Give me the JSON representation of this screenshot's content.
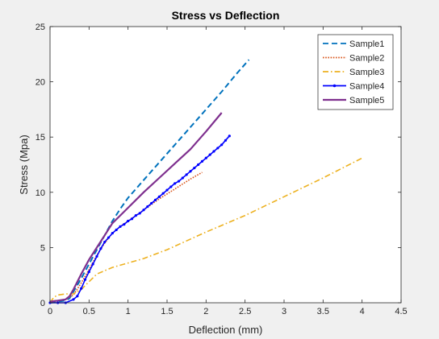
{
  "chart_data": {
    "type": "line",
    "title": "Stress vs Deflection",
    "xlabel": "Deflection (mm)",
    "ylabel": "Stress (Mpa)",
    "xlim": [
      0,
      4.5
    ],
    "ylim": [
      0,
      25
    ],
    "xticks": [
      0,
      0.5,
      1,
      1.5,
      2,
      2.5,
      3,
      3.5,
      4,
      4.5
    ],
    "xtick_labels": [
      "0",
      "0.5",
      "1",
      "1.5",
      "2",
      "2.5",
      "3",
      "3.5",
      "4",
      "4.5"
    ],
    "yticks": [
      0,
      5,
      10,
      15,
      20,
      25
    ],
    "ytick_labels": [
      "0",
      "5",
      "10",
      "15",
      "20",
      "25"
    ],
    "grid": false,
    "legend_position": "top-right",
    "series": [
      {
        "name": "Sample1",
        "color": "#0072bd",
        "style": "dashed",
        "marker": "none",
        "x": [
          0.0,
          0.1,
          0.2,
          0.25,
          0.3,
          0.4,
          0.5,
          0.6,
          0.7,
          0.8,
          0.9,
          1.0,
          1.2,
          1.4,
          1.6,
          1.8,
          2.0,
          2.2,
          2.4,
          2.55
        ],
        "y": [
          0.0,
          0.1,
          0.2,
          0.4,
          1.0,
          2.2,
          3.5,
          4.8,
          6.1,
          7.4,
          8.5,
          9.5,
          11.1,
          12.7,
          14.3,
          15.9,
          17.5,
          19.1,
          20.8,
          22.0
        ]
      },
      {
        "name": "Sample2",
        "color": "#d95319",
        "style": "dotted",
        "marker": "none",
        "x": [
          0.0,
          0.05,
          0.1,
          0.2,
          0.3,
          0.4,
          0.5,
          0.6,
          0.7,
          0.8,
          0.9,
          1.0,
          1.2,
          1.4,
          1.6,
          1.8,
          1.95
        ],
        "y": [
          0.0,
          0.2,
          0.2,
          0.3,
          0.7,
          1.8,
          3.0,
          4.3,
          5.4,
          6.3,
          6.9,
          7.4,
          8.4,
          9.4,
          10.3,
          11.2,
          11.8
        ]
      },
      {
        "name": "Sample3",
        "color": "#edb120",
        "style": "dashdot",
        "marker": "none",
        "x": [
          0.0,
          0.05,
          0.1,
          0.2,
          0.3,
          0.4,
          0.5,
          0.6,
          0.8,
          1.0,
          1.2,
          1.5,
          2.0,
          2.5,
          3.0,
          3.5,
          4.0
        ],
        "y": [
          0.0,
          0.5,
          0.7,
          0.8,
          0.8,
          1.2,
          1.9,
          2.6,
          3.2,
          3.6,
          4.0,
          4.8,
          6.4,
          7.9,
          9.6,
          11.3,
          13.1
        ]
      },
      {
        "name": "Sample4",
        "color": "#0000ff",
        "style": "solid",
        "marker": "dot",
        "x": [
          0.0,
          0.1,
          0.2,
          0.3,
          0.35,
          0.4,
          0.45,
          0.5,
          0.55,
          0.6,
          0.65,
          0.7,
          0.75,
          0.8,
          0.85,
          0.9,
          0.95,
          1.0,
          1.05,
          1.1,
          1.15,
          1.2,
          1.25,
          1.3,
          1.35,
          1.4,
          1.45,
          1.5,
          1.55,
          1.6,
          1.65,
          1.7,
          1.75,
          1.8,
          1.85,
          1.9,
          1.95,
          2.0,
          2.05,
          2.1,
          2.15,
          2.2,
          2.25,
          2.3
        ],
        "y": [
          0.0,
          0.0,
          0.0,
          0.3,
          0.6,
          1.3,
          2.1,
          2.8,
          3.5,
          4.2,
          4.9,
          5.5,
          5.9,
          6.3,
          6.6,
          6.9,
          7.1,
          7.4,
          7.6,
          7.9,
          8.1,
          8.4,
          8.7,
          9.0,
          9.3,
          9.6,
          9.9,
          10.2,
          10.5,
          10.8,
          11.0,
          11.3,
          11.6,
          11.9,
          12.2,
          12.5,
          12.8,
          13.1,
          13.4,
          13.7,
          14.0,
          14.3,
          14.7,
          15.1
        ]
      },
      {
        "name": "Sample5",
        "color": "#7e2f8e",
        "style": "solid",
        "marker": "none",
        "x": [
          0.0,
          0.1,
          0.2,
          0.25,
          0.3,
          0.4,
          0.5,
          0.6,
          0.7,
          0.8,
          0.9,
          1.0,
          1.2,
          1.4,
          1.6,
          1.8,
          2.0,
          2.2
        ],
        "y": [
          0.1,
          0.2,
          0.3,
          0.6,
          1.2,
          2.6,
          3.9,
          5.0,
          6.1,
          7.2,
          7.9,
          8.6,
          10.0,
          11.3,
          12.6,
          13.9,
          15.5,
          17.2
        ]
      }
    ]
  }
}
